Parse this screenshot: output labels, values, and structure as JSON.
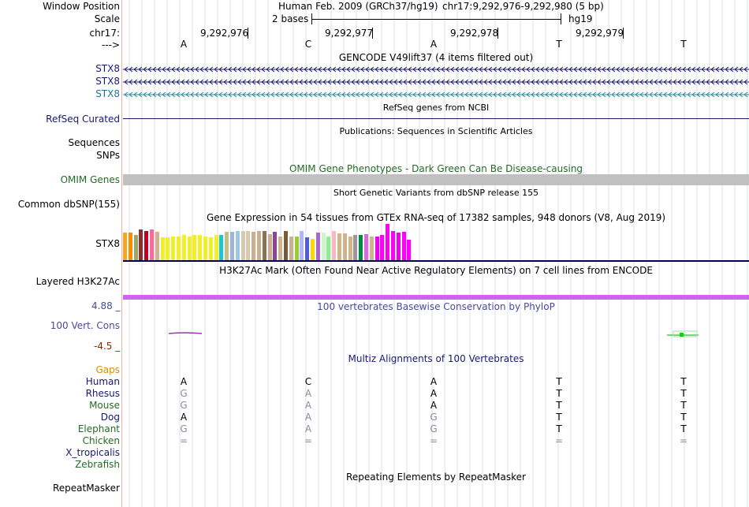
{
  "header": {
    "window_position_label": "Window Position",
    "assembly": "Human Feb. 2009 (GRCh37/hg19)",
    "coords": "chr17:9,292,976-9,292,980 (5 bp)",
    "scale_label": "Scale",
    "scale_text": "2 bases",
    "scale_db": "hg19",
    "chrom_label": "chr17:",
    "arrow_label": "--->",
    "positions": [
      "9,292,976",
      "9,292,977",
      "9,292,978",
      "9,292,979"
    ],
    "bases": [
      "A",
      "C",
      "A",
      "T",
      "T"
    ]
  },
  "gencode": {
    "title": "GENCODE V49lift37 (4 items filtered out)",
    "rows": [
      "STX8",
      "STX8",
      "STX8"
    ]
  },
  "refseq": {
    "title": "RefSeq genes from NCBI",
    "label": "RefSeq Curated"
  },
  "publications": {
    "title": "Publications: Sequences in Scientific Articles",
    "label1": "Sequences",
    "label2": "SNPs"
  },
  "omim": {
    "title": "OMIM Gene Phenotypes - Dark Green Can Be Disease-causing",
    "label": "OMIM Genes"
  },
  "dbsnp": {
    "title": "Short Genetic Variants from dbSNP release 155",
    "label": "Common dbSNP(155)"
  },
  "gtex": {
    "title": "Gene Expression in 54 tissues from GTEx RNA-seq of 17382 samples, 948 donors (V8, Aug 2019)",
    "label": "STX8",
    "bar_heights": [
      0.76,
      0.76,
      0.7,
      0.84,
      0.8,
      0.84,
      0.78,
      0.64,
      0.64,
      0.66,
      0.66,
      0.7,
      0.66,
      0.7,
      0.7,
      0.66,
      0.62,
      0.7,
      0.7,
      0.78,
      0.78,
      0.8,
      0.8,
      0.8,
      0.78,
      0.8,
      0.8,
      0.72,
      0.78,
      0.66,
      0.8,
      0.66,
      0.66,
      0.8,
      0.62,
      0.58,
      0.76,
      0.76,
      0.66,
      0.8,
      0.74,
      0.74,
      0.66,
      0.7,
      0.7,
      0.72,
      0.66,
      0.66,
      0.7,
      1.0,
      0.8,
      0.76,
      0.78,
      0.56
    ],
    "bar_colors": [
      "#f5a623",
      "#ff8c00",
      "#9aa86a",
      "#8b2e2e",
      "#c00020",
      "#ff6699",
      "#d2b48c",
      "#f0ef2a",
      "#f0ef2a",
      "#f0ef2a",
      "#f0ef2a",
      "#f0ef2a",
      "#f0ef2a",
      "#f0ef2a",
      "#f0ef2a",
      "#f0ef2a",
      "#f0ef2a",
      "#f0ef2a",
      "#1ac6d0",
      "#c0c080",
      "#a0b4d8",
      "#9ec7e5",
      "#d9c8b0",
      "#d9c8b0",
      "#c8b090",
      "#c8b090",
      "#8b7355",
      "#c8b090",
      "#8b4590",
      "#d2b48c",
      "#7a5a3a",
      "#c8b090",
      "#9acd32",
      "#b3b3ff",
      "#4a5de0",
      "#ffd700",
      "#aa66cc",
      "#ccf5cc",
      "#90ee90",
      "#ffb6c1",
      "#d2b48c",
      "#d2b48c",
      "#d2b48c",
      "#999999",
      "#008b45",
      "#dd66dd",
      "#d2b48c",
      "#ee00ee",
      "#ff00ff",
      "#ff00ee",
      "#ff00ff",
      "#ee00ee",
      "#ff00ff",
      "#ff00ff"
    ]
  },
  "h3k27ac": {
    "title": "H3K27Ac Mark (Often Found Near Active Regulatory Elements) on 7 cell lines from ENCODE",
    "label": "Layered H3K27Ac"
  },
  "conservation": {
    "title": "100 vertebrates Basewise Conservation by PhyloP",
    "label": "100 Vert. Cons",
    "max": "4.88 _",
    "min": "-4.5 _",
    "color_pos": "#4a4a9a",
    "color_neg": "#8b2500"
  },
  "multiz": {
    "title": "Multiz Alignments of 100 Vertebrates",
    "gaps_label": "Gaps",
    "species": [
      {
        "name": "Human",
        "bases": [
          "A",
          "C",
          "A",
          "T",
          "T"
        ],
        "color": "navy"
      },
      {
        "name": "Rhesus",
        "bases": [
          "G",
          "A",
          "A",
          "T",
          "T"
        ],
        "color": "navy"
      },
      {
        "name": "Mouse",
        "bases": [
          "G",
          "A",
          "A",
          "T",
          "T"
        ],
        "color": "green"
      },
      {
        "name": "Dog",
        "bases": [
          "A",
          "A",
          "G",
          "T",
          "T"
        ],
        "color": "navy"
      },
      {
        "name": "Elephant",
        "bases": [
          "G",
          "A",
          "G",
          "T",
          "T"
        ],
        "color": "green"
      },
      {
        "name": "Chicken",
        "bases": [
          "=",
          "=",
          "=",
          "=",
          "="
        ],
        "color": "green"
      },
      {
        "name": "X_tropicalis",
        "bases": [
          "",
          "",
          "",
          "",
          ""
        ],
        "color": "navy"
      },
      {
        "name": "Zebrafish",
        "bases": [
          "",
          "",
          "",
          "",
          ""
        ],
        "color": "green"
      }
    ],
    "dim": [
      [
        false,
        false,
        false,
        false,
        false
      ],
      [
        true,
        true,
        false,
        false,
        false
      ],
      [
        true,
        true,
        false,
        false,
        false
      ],
      [
        false,
        true,
        true,
        false,
        false
      ],
      [
        true,
        true,
        true,
        false,
        false
      ],
      [
        true,
        true,
        true,
        true,
        true
      ],
      [
        false,
        false,
        false,
        false,
        false
      ],
      [
        false,
        false,
        false,
        false,
        false
      ]
    ]
  },
  "repeatmasker": {
    "title": "Repeating Elements by RepeatMasker",
    "label": "RepeatMasker"
  }
}
